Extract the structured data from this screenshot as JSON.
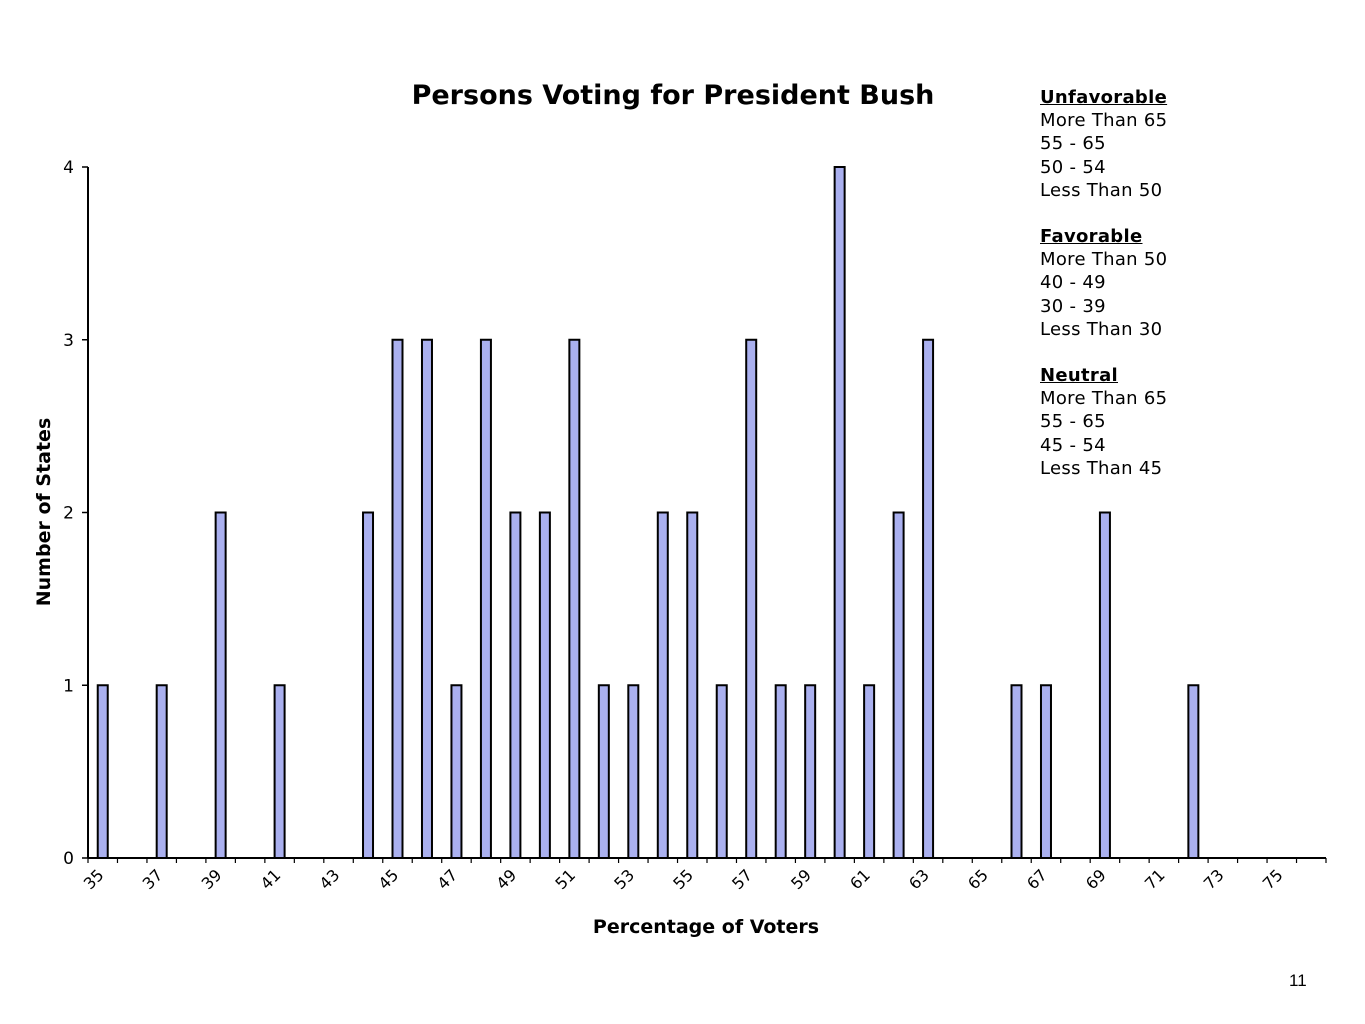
{
  "slide_number": "11",
  "chart_data": {
    "type": "bar",
    "title": "Persons Voting for President Bush",
    "xlabel": "Percentage of Voters",
    "ylabel": "Number of States",
    "ylim": [
      0,
      4
    ],
    "yticks": [
      "0",
      "1",
      "2",
      "3",
      "4"
    ],
    "xtick_labels": [
      "35",
      "37",
      "39",
      "41",
      "43",
      "45",
      "47",
      "49",
      "51",
      "53",
      "55",
      "57",
      "59",
      "61",
      "63",
      "65",
      "67",
      "69",
      "71",
      "73",
      "75"
    ],
    "categories": [
      35,
      36,
      37,
      38,
      39,
      40,
      41,
      42,
      43,
      44,
      45,
      46,
      47,
      48,
      49,
      50,
      51,
      52,
      53,
      54,
      55,
      56,
      57,
      58,
      59,
      60,
      61,
      62,
      63,
      64,
      65,
      66,
      67,
      68,
      69,
      70,
      71,
      72,
      73,
      74,
      75,
      76
    ],
    "values": [
      1,
      0,
      1,
      0,
      2,
      0,
      1,
      0,
      0,
      2,
      3,
      3,
      1,
      3,
      2,
      2,
      3,
      1,
      1,
      2,
      2,
      1,
      3,
      1,
      1,
      4,
      1,
      2,
      3,
      0,
      0,
      1,
      1,
      0,
      2,
      0,
      0,
      1,
      0,
      0,
      0,
      0
    ],
    "bar_color": "#aab0ef",
    "bar_stroke": "#000000",
    "grid": false
  },
  "legend": [
    {
      "heading": "Unfavorable",
      "items": [
        "More Than 65",
        "55 - 65",
        "50 - 54",
        "Less Than 50"
      ]
    },
    {
      "heading": "Favorable",
      "items": [
        "More Than 50",
        "40 - 49",
        "30 - 39",
        "Less Than 30"
      ]
    },
    {
      "heading": "Neutral",
      "items": [
        "More Than 65",
        "55 - 65",
        "45 - 54",
        "Less Than 45"
      ]
    }
  ]
}
